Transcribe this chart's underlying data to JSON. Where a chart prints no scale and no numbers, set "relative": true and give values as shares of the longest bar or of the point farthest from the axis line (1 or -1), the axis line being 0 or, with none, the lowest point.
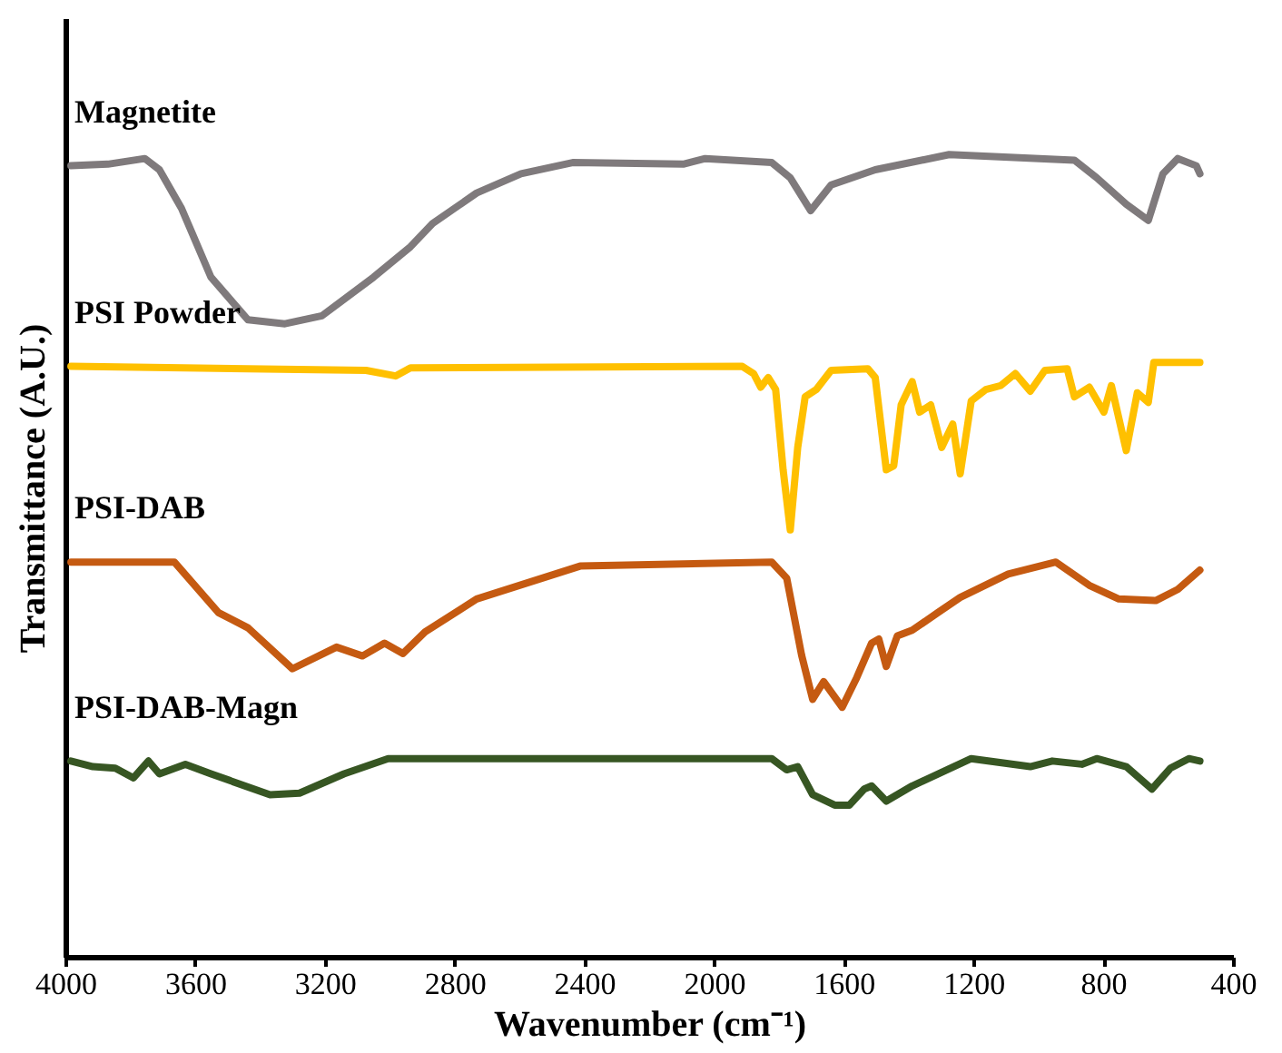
{
  "chart_data": {
    "type": "line",
    "relative": true,
    "xlabel": "Wavenumber (cm⁻¹)",
    "ylabel": "Transmittance  (A.U.)",
    "xlim": [
      4000,
      400
    ],
    "xticks": [
      4000,
      3600,
      3200,
      2800,
      2400,
      2000,
      1600,
      1200,
      800,
      400
    ],
    "legend": false,
    "grid": false,
    "marker": "none",
    "line_style": "solid",
    "series": [
      {
        "name": "Magnetite",
        "color": "#7f7a7c",
        "x": [
          3983,
          3869,
          3755,
          3710,
          3642,
          3551,
          3437,
          3323,
          3209,
          3050,
          2936,
          2868,
          2732,
          2595,
          2436,
          2095,
          2027,
          1822,
          1765,
          1702,
          1639,
          1503,
          1275,
          889,
          820,
          729,
          661,
          616,
          570,
          513,
          502
        ],
        "values": [
          0.986,
          0.988,
          0.995,
          0.981,
          0.933,
          0.847,
          0.794,
          0.789,
          0.799,
          0.847,
          0.885,
          0.914,
          0.952,
          0.976,
          0.99,
          0.988,
          0.995,
          0.99,
          0.971,
          0.93,
          0.962,
          0.981,
          1.0,
          0.993,
          0.971,
          0.938,
          0.918,
          0.976,
          0.995,
          0.986,
          0.976
        ]
      },
      {
        "name": "PSI Powder",
        "color": "#ffc000",
        "x": [
          3983,
          3073,
          2982,
          2936,
          1913,
          1878,
          1856,
          1833,
          1810,
          1787,
          1765,
          1742,
          1719,
          1685,
          1639,
          1526,
          1503,
          1469,
          1446,
          1423,
          1389,
          1366,
          1332,
          1298,
          1264,
          1241,
          1207,
          1162,
          1116,
          1071,
          1025,
          980,
          911,
          889,
          843,
          798,
          775,
          729,
          695,
          661,
          644,
          502
        ],
        "values": [
          0.736,
          0.731,
          0.724,
          0.734,
          0.736,
          0.727,
          0.71,
          0.722,
          0.707,
          0.607,
          0.532,
          0.635,
          0.698,
          0.707,
          0.731,
          0.733,
          0.722,
          0.607,
          0.612,
          0.688,
          0.717,
          0.679,
          0.688,
          0.635,
          0.664,
          0.602,
          0.693,
          0.707,
          0.712,
          0.727,
          0.705,
          0.731,
          0.733,
          0.698,
          0.71,
          0.679,
          0.712,
          0.631,
          0.703,
          0.691,
          0.741,
          0.741
        ]
      },
      {
        "name": "PSI-DAB",
        "color": "#c55a11",
        "x": [
          3983,
          3664,
          3528,
          3437,
          3300,
          3164,
          3084,
          3016,
          2959,
          2891,
          2732,
          2413,
          1822,
          1776,
          1730,
          1696,
          1662,
          1605,
          1560,
          1514,
          1492,
          1469,
          1435,
          1389,
          1310,
          1241,
          1093,
          946,
          843,
          752,
          638,
          570,
          502
        ],
        "values": [
          0.492,
          0.492,
          0.429,
          0.41,
          0.359,
          0.386,
          0.375,
          0.391,
          0.378,
          0.405,
          0.446,
          0.487,
          0.492,
          0.472,
          0.376,
          0.321,
          0.343,
          0.311,
          0.348,
          0.391,
          0.396,
          0.362,
          0.4,
          0.407,
          0.429,
          0.448,
          0.477,
          0.492,
          0.463,
          0.446,
          0.444,
          0.458,
          0.482
        ]
      },
      {
        "name": "PSI-DAB-Magn",
        "color": "#375623",
        "x": [
          3983,
          3915,
          3846,
          3790,
          3744,
          3710,
          3630,
          3551,
          3369,
          3278,
          3141,
          3005,
          1822,
          1776,
          1742,
          1696,
          1628,
          1583,
          1537,
          1514,
          1469,
          1389,
          1207,
          1025,
          957,
          866,
          820,
          729,
          650,
          593,
          536,
          502
        ],
        "values": [
          0.244,
          0.237,
          0.235,
          0.223,
          0.244,
          0.228,
          0.24,
          0.228,
          0.202,
          0.204,
          0.228,
          0.247,
          0.247,
          0.233,
          0.237,
          0.202,
          0.189,
          0.189,
          0.209,
          0.213,
          0.194,
          0.213,
          0.247,
          0.237,
          0.244,
          0.24,
          0.247,
          0.237,
          0.209,
          0.235,
          0.247,
          0.244
        ]
      }
    ]
  }
}
